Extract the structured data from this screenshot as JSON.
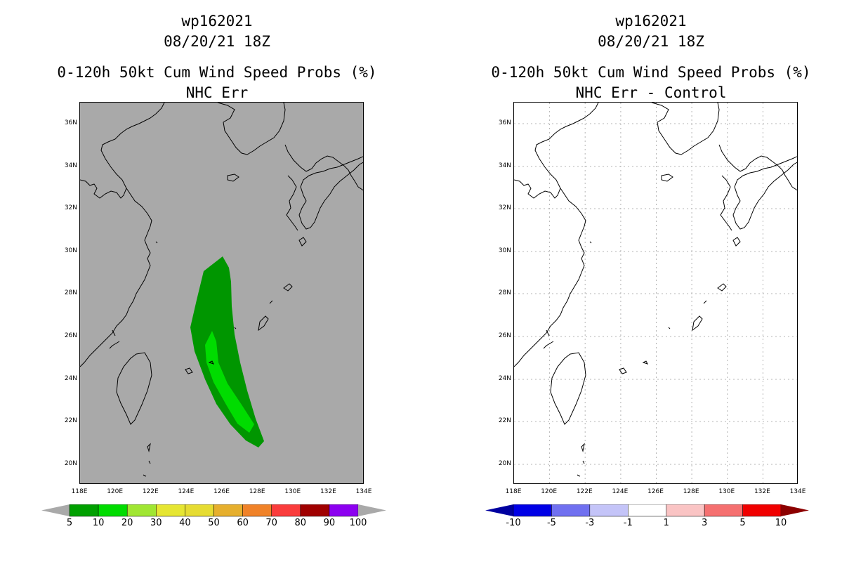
{
  "left": {
    "title_lines": [
      "wp162021",
      "08/20/21 18Z",
      "0-120h 50kt Cum Wind Speed Probs (%)",
      "NHC Err"
    ],
    "map_background": "#a9a9a9",
    "lat_labels": [
      "36N",
      "34N",
      "32N",
      "30N",
      "28N",
      "26N",
      "24N",
      "22N",
      "20N"
    ],
    "lon_labels": [
      "118E",
      "120E",
      "122E",
      "124E",
      "126E",
      "128E",
      "130E",
      "132E",
      "134E"
    ],
    "colorbar": {
      "colors": [
        "#00a000",
        "#00dc00",
        "#a0e632",
        "#e6e632",
        "#e6dc32",
        "#e6af2d",
        "#f08228",
        "#fa3c3c",
        "#a00000",
        "#8c00f0"
      ],
      "end_left_color": "#a9a9a9",
      "end_right_color": "#a9a9a9",
      "labels": [
        "5",
        "10",
        "20",
        "30",
        "40",
        "50",
        "60",
        "70",
        "80",
        "90",
        "100"
      ]
    },
    "swath_colors": {
      "outer": "#009600",
      "inner": "#00dc00"
    }
  },
  "right": {
    "title_lines": [
      "wp162021",
      "08/20/21 18Z",
      "0-120h 50kt Cum Wind Speed Probs (%)",
      "NHC Err - Control"
    ],
    "map_background": "#ffffff",
    "lat_labels": [
      "36N",
      "34N",
      "32N",
      "30N",
      "28N",
      "26N",
      "24N",
      "22N",
      "20N"
    ],
    "lon_labels": [
      "118E",
      "120E",
      "122E",
      "124E",
      "126E",
      "128E",
      "130E",
      "132E",
      "134E"
    ],
    "colorbar": {
      "colors": [
        "#0000e6",
        "#7070f0",
        "#c4c4f8",
        "#ffffff",
        "#fac4c4",
        "#f57070",
        "#f00000"
      ],
      "end_left_color": "#0000a0",
      "end_right_color": "#8c0000",
      "labels": [
        "-10",
        "-5",
        "-3",
        "-1",
        "1",
        "3",
        "5",
        "10"
      ]
    },
    "grid_color": "#b4b4b4"
  }
}
